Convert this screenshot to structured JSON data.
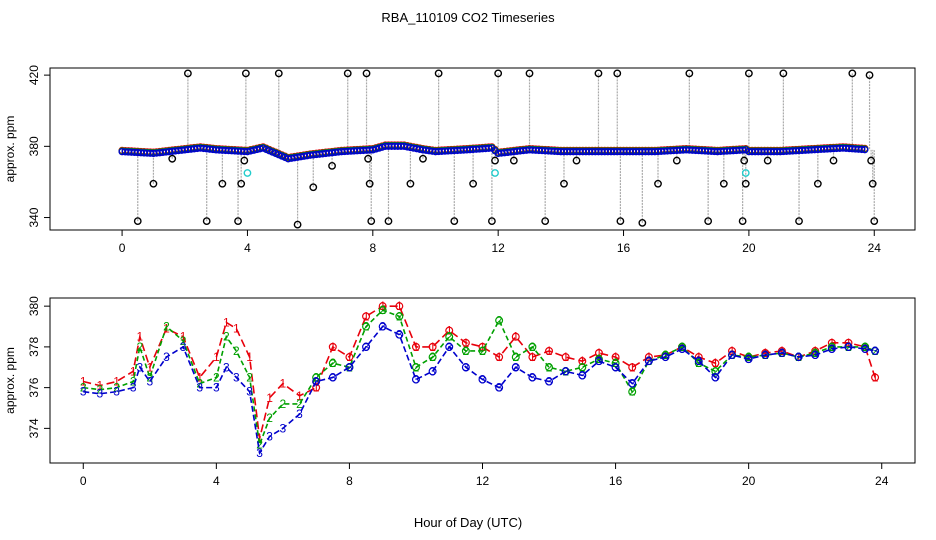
{
  "title": "RBA_110109  CO2 Timeseries",
  "xlabel": "Hour of Day (UTC)",
  "colors": {
    "series1": "#e8000b",
    "series2": "#00a000",
    "series3": "#0000cc",
    "raw": "#000000",
    "flagged": "#22cccc",
    "spike_line": "#aaaaaa"
  },
  "chart_data": [
    {
      "type": "scatter",
      "panel": "top",
      "ylabel": "approx. ppm",
      "xlim": [
        -2.3,
        25.3
      ],
      "ylim": [
        333,
        424
      ],
      "xticks": [
        0,
        4,
        8,
        12,
        16,
        20,
        24
      ],
      "yticks": [
        340,
        380,
        420
      ],
      "grid": false,
      "baseline_profile": [
        [
          0,
          377
        ],
        [
          1,
          376
        ],
        [
          1.5,
          377
        ],
        [
          2.5,
          379
        ],
        [
          3,
          378
        ],
        [
          4,
          377
        ],
        [
          4.5,
          379
        ],
        [
          5.3,
          373
        ],
        [
          6,
          375
        ],
        [
          7,
          377
        ],
        [
          8,
          378
        ],
        [
          8.4,
          380
        ],
        [
          9,
          380
        ],
        [
          9.6,
          378
        ],
        [
          10,
          377
        ],
        [
          11,
          378
        ],
        [
          11.8,
          379
        ],
        [
          12,
          376
        ],
        [
          13,
          378
        ],
        [
          14,
          377
        ],
        [
          15,
          377
        ],
        [
          16,
          377
        ],
        [
          17,
          377
        ],
        [
          18,
          378
        ],
        [
          19,
          377
        ],
        [
          19.9,
          378
        ],
        [
          20,
          377
        ],
        [
          21,
          377
        ],
        [
          22,
          378
        ],
        [
          23,
          379
        ],
        [
          23.8,
          378
        ]
      ],
      "raw_outliers": [
        [
          0.5,
          338
        ],
        [
          1,
          359
        ],
        [
          1.6,
          373
        ],
        [
          2.1,
          421
        ],
        [
          2.7,
          338
        ],
        [
          3.2,
          359
        ],
        [
          3.7,
          338
        ],
        [
          3.8,
          359
        ],
        [
          3.9,
          372
        ],
        [
          3.95,
          421
        ],
        [
          5,
          421
        ],
        [
          5.6,
          336
        ],
        [
          6.1,
          357
        ],
        [
          6.7,
          369
        ],
        [
          7.2,
          421
        ],
        [
          7.8,
          421
        ],
        [
          7.85,
          373
        ],
        [
          7.9,
          359
        ],
        [
          7.95,
          338
        ],
        [
          8.5,
          338
        ],
        [
          9.2,
          359
        ],
        [
          9.6,
          373
        ],
        [
          10.1,
          421
        ],
        [
          10.6,
          338
        ],
        [
          11.2,
          359
        ],
        [
          11.8,
          338
        ],
        [
          11.9,
          372
        ],
        [
          12,
          421
        ],
        [
          12.5,
          372
        ],
        [
          13,
          421
        ],
        [
          13.5,
          338
        ],
        [
          14.1,
          359
        ],
        [
          14.5,
          372
        ],
        [
          15.2,
          421
        ],
        [
          15.8,
          421
        ],
        [
          15.9,
          338
        ],
        [
          16.6,
          337
        ],
        [
          17.1,
          359
        ],
        [
          17.7,
          372
        ],
        [
          18.1,
          421
        ],
        [
          18.7,
          338
        ],
        [
          19.2,
          359
        ],
        [
          19.8,
          338
        ],
        [
          19.85,
          372
        ],
        [
          19.9,
          359
        ],
        [
          20,
          421
        ],
        [
          20.6,
          372
        ],
        [
          21.1,
          421
        ],
        [
          21.6,
          338
        ],
        [
          22.2,
          359
        ],
        [
          22.7,
          372
        ],
        [
          23.3,
          421
        ],
        [
          23.85,
          420
        ],
        [
          23.9,
          372
        ],
        [
          23.95,
          359
        ],
        [
          24,
          338
        ]
      ],
      "flagged_points": [
        [
          4,
          365
        ],
        [
          11.9,
          365
        ],
        [
          19.9,
          365
        ]
      ]
    },
    {
      "type": "line",
      "panel": "bottom",
      "ylabel": "approx. ppm",
      "xlim": [
        -1,
        25
      ],
      "ylim": [
        372.3,
        380.4
      ],
      "xticks": [
        0,
        4,
        8,
        12,
        16,
        20,
        24
      ],
      "yticks": [
        374,
        376,
        378,
        380
      ],
      "grid": false,
      "series": [
        {
          "label": "1",
          "values": [
            [
              0,
              376.3
            ],
            [
              0.5,
              376.1
            ],
            [
              1,
              376.3
            ],
            [
              1.5,
              376.8
            ],
            [
              1.7,
              378.5
            ],
            [
              2,
              377
            ],
            [
              2.5,
              378.9
            ],
            [
              3,
              378.5
            ],
            [
              3.5,
              376.5
            ],
            [
              4,
              377.5
            ],
            [
              4.3,
              379.2
            ],
            [
              4.6,
              378.9
            ],
            [
              5,
              377.5
            ],
            [
              5.3,
              373.5
            ],
            [
              5.6,
              375.5
            ],
            [
              6,
              376.2
            ],
            [
              6.5,
              375.6
            ],
            [
              7,
              376
            ],
            [
              7.5,
              378
            ],
            [
              8,
              377.5
            ],
            [
              8.5,
              379.5
            ],
            [
              9,
              380
            ],
            [
              9.5,
              380
            ],
            [
              10,
              378
            ],
            [
              10.5,
              378
            ],
            [
              11,
              378.8
            ],
            [
              11.5,
              378.2
            ],
            [
              12,
              378
            ],
            [
              12.5,
              377.5
            ],
            [
              13,
              378.5
            ],
            [
              13.5,
              377.5
            ],
            [
              14,
              377.8
            ],
            [
              14.5,
              377.5
            ],
            [
              15,
              377.3
            ],
            [
              15.5,
              377.7
            ],
            [
              16,
              377.5
            ],
            [
              16.5,
              377
            ],
            [
              17,
              377.5
            ],
            [
              17.5,
              377.6
            ],
            [
              18,
              378
            ],
            [
              18.5,
              377.5
            ],
            [
              19,
              377.2
            ],
            [
              19.5,
              377.8
            ],
            [
              20,
              377.5
            ],
            [
              20.5,
              377.7
            ],
            [
              21,
              377.8
            ],
            [
              21.5,
              377.5
            ],
            [
              22,
              377.8
            ],
            [
              22.5,
              378.2
            ],
            [
              23,
              378.2
            ],
            [
              23.5,
              378
            ],
            [
              23.8,
              376.5
            ]
          ]
        },
        {
          "label": "2",
          "values": [
            [
              0,
              376
            ],
            [
              0.5,
              375.9
            ],
            [
              1,
              376
            ],
            [
              1.5,
              376.3
            ],
            [
              1.7,
              378
            ],
            [
              2,
              376.5
            ],
            [
              2.5,
              379
            ],
            [
              3,
              378.3
            ],
            [
              3.5,
              376.2
            ],
            [
              4,
              376.5
            ],
            [
              4.3,
              378.5
            ],
            [
              4.6,
              377.8
            ],
            [
              5,
              376.5
            ],
            [
              5.3,
              373.2
            ],
            [
              5.6,
              374.5
            ],
            [
              6,
              375.2
            ],
            [
              6.5,
              375.2
            ],
            [
              7,
              376.5
            ],
            [
              7.5,
              377.2
            ],
            [
              8,
              377
            ],
            [
              8.5,
              379
            ],
            [
              9,
              379.8
            ],
            [
              9.5,
              379.5
            ],
            [
              10,
              377
            ],
            [
              10.5,
              377.5
            ],
            [
              11,
              378.5
            ],
            [
              11.5,
              377.8
            ],
            [
              12,
              377.8
            ],
            [
              12.5,
              379.3
            ],
            [
              13,
              377.5
            ],
            [
              13.5,
              378
            ],
            [
              14,
              377
            ],
            [
              14.5,
              376.8
            ],
            [
              15,
              377
            ],
            [
              15.5,
              377.4
            ],
            [
              16,
              377.2
            ],
            [
              16.5,
              375.8
            ],
            [
              17,
              377.3
            ],
            [
              17.5,
              377.6
            ],
            [
              18,
              378
            ],
            [
              18.5,
              377.2
            ],
            [
              19,
              376.8
            ],
            [
              19.5,
              377.6
            ],
            [
              20,
              377.5
            ],
            [
              20.5,
              377.6
            ],
            [
              21,
              377.7
            ],
            [
              21.5,
              377.5
            ],
            [
              22,
              377.7
            ],
            [
              22.5,
              378
            ],
            [
              23,
              378
            ],
            [
              23.5,
              378
            ],
            [
              23.8,
              377.8
            ]
          ]
        },
        {
          "label": "3",
          "values": [
            [
              0,
              375.8
            ],
            [
              0.5,
              375.7
            ],
            [
              1,
              375.8
            ],
            [
              1.5,
              376
            ],
            [
              1.7,
              377
            ],
            [
              2,
              376.3
            ],
            [
              2.5,
              377.5
            ],
            [
              3,
              378
            ],
            [
              3.5,
              376
            ],
            [
              4,
              376
            ],
            [
              4.3,
              377
            ],
            [
              4.6,
              376.5
            ],
            [
              5,
              375.8
            ],
            [
              5.3,
              372.8
            ],
            [
              5.6,
              373.6
            ],
            [
              6,
              374
            ],
            [
              6.5,
              374.7
            ],
            [
              7,
              376.3
            ],
            [
              7.5,
              376.5
            ],
            [
              8,
              377
            ],
            [
              8.5,
              378
            ],
            [
              9,
              379
            ],
            [
              9.5,
              378.6
            ],
            [
              10,
              376.4
            ],
            [
              10.5,
              376.8
            ],
            [
              11,
              378
            ],
            [
              11.5,
              377
            ],
            [
              12,
              376.4
            ],
            [
              12.5,
              376
            ],
            [
              13,
              377
            ],
            [
              13.5,
              376.5
            ],
            [
              14,
              376.3
            ],
            [
              14.5,
              376.8
            ],
            [
              15,
              376.6
            ],
            [
              15.5,
              377.3
            ],
            [
              16,
              377
            ],
            [
              16.5,
              376.2
            ],
            [
              17,
              377.3
            ],
            [
              17.5,
              377.5
            ],
            [
              18,
              377.9
            ],
            [
              18.5,
              377.3
            ],
            [
              19,
              376.5
            ],
            [
              19.5,
              377.6
            ],
            [
              20,
              377.4
            ],
            [
              20.5,
              377.6
            ],
            [
              21,
              377.7
            ],
            [
              21.5,
              377.5
            ],
            [
              22,
              377.6
            ],
            [
              22.5,
              377.9
            ],
            [
              23,
              378
            ],
            [
              23.5,
              377.9
            ],
            [
              23.8,
              377.8
            ]
          ]
        }
      ]
    }
  ]
}
